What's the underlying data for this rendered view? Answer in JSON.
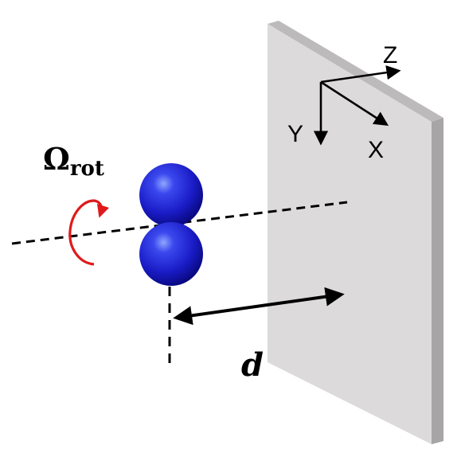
{
  "labels": {
    "omega_symbol": "Ω",
    "omega_subscript": "rot",
    "distance": "d",
    "axis_z": "Z",
    "axis_y": "Y",
    "axis_x": "X"
  },
  "colors": {
    "wall_face": "#dcdada",
    "wall_side": "#a7a5a5",
    "wall_top": "#bcbaba",
    "sphere": "#1b1bcc",
    "rotation_arrow": "#e0191c",
    "lines": "#000000"
  },
  "icons": {
    "rotation": "circular-arrow-icon",
    "spheres": "dimer-spheres"
  }
}
